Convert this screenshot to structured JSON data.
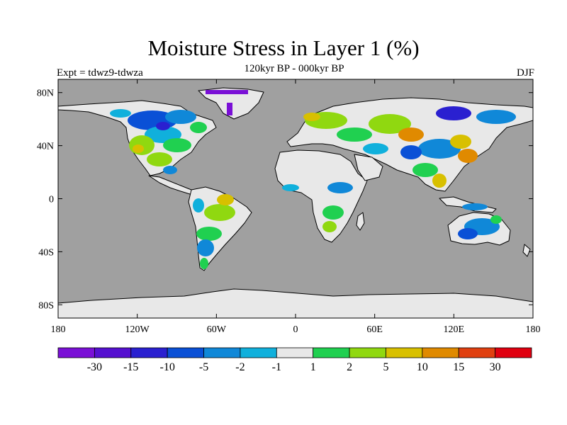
{
  "header": {
    "title": "Moisture Stress in Layer 1 (%)",
    "subtitle": "120kyr BP - 000kyr BP",
    "expt": "Expt = tdwz9-tdwza",
    "season": "DJF"
  },
  "map": {
    "ocean_color": "#a0a0a0",
    "x_ticks": [
      {
        "lon": -180,
        "label": "180"
      },
      {
        "lon": -120,
        "label": "120W"
      },
      {
        "lon": -60,
        "label": "60W"
      },
      {
        "lon": 0,
        "label": "0"
      },
      {
        "lon": 60,
        "label": "60E"
      },
      {
        "lon": 120,
        "label": "120E"
      },
      {
        "lon": 180,
        "label": "180"
      }
    ],
    "y_ticks": [
      {
        "lat": 80,
        "label": "80N"
      },
      {
        "lat": 40,
        "label": "40N"
      },
      {
        "lat": 0,
        "label": "0"
      },
      {
        "lat": -40,
        "label": "40S"
      },
      {
        "lat": -80,
        "label": "80S"
      }
    ],
    "land_base_color": "#e8e8e8"
  },
  "colorbar": {
    "colors": [
      "#7a10d6",
      "#5510d0",
      "#2a20d0",
      "#0a50d6",
      "#1088d8",
      "#10b0dc",
      "#e8e8e8",
      "#20d050",
      "#90d810",
      "#d8c000",
      "#e08a00",
      "#e04010",
      "#e00010"
    ],
    "labels": [
      "-30",
      "-15",
      "-10",
      "-5",
      "-2",
      "-1",
      "1",
      "2",
      "5",
      "10",
      "15",
      "30"
    ]
  }
}
